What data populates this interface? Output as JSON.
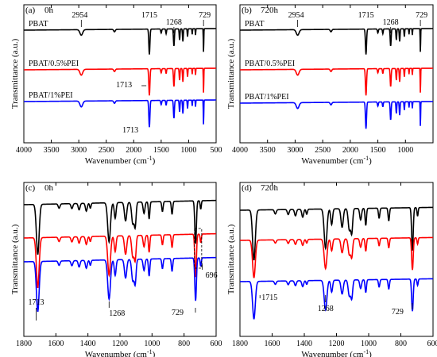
{
  "chart_data": [
    {
      "panel_label": "(a)",
      "time_label": "0h",
      "type": "line",
      "xlabel": "Wavenumber (cm⁻¹)",
      "ylabel": "Transmittance (a.u.)",
      "xlim": [
        4000,
        500
      ],
      "xticks": [
        4000,
        3500,
        3000,
        2500,
        2000,
        1500,
        1000,
        500
      ],
      "series": [
        {
          "name": "PBAT",
          "color": "#000000"
        },
        {
          "name": "PBAT/0.5%PEI",
          "color": "#ff0000"
        },
        {
          "name": "PBAT/1%PEI",
          "color": "#0000ff"
        }
      ],
      "annotations": [
        "2954",
        "1715",
        "1268",
        "729",
        "1713",
        "1713"
      ]
    },
    {
      "panel_label": "(b)",
      "time_label": "720h",
      "type": "line",
      "xlabel": "Wavenumber (cm⁻¹)",
      "ylabel": "Transmittance (a.u.)",
      "xlim": [
        4000,
        500
      ],
      "xticks": [
        4000,
        3500,
        3000,
        2500,
        2000,
        1500,
        1000
      ],
      "series": [
        {
          "name": "PBAT",
          "color": "#000000"
        },
        {
          "name": "PBAT/0.5%PEI",
          "color": "#ff0000"
        },
        {
          "name": "PBAT/1%PEI",
          "color": "#0000ff"
        }
      ],
      "annotations": [
        "2954",
        "1715",
        "1268",
        "729"
      ]
    },
    {
      "panel_label": "(c)",
      "time_label": "0h",
      "type": "line",
      "xlabel": "Wavenumber (cm⁻¹)",
      "ylabel": "Transmittance (a.u.)",
      "xlim": [
        1800,
        600
      ],
      "xticks": [
        1800,
        1600,
        1400,
        1200,
        1000,
        800,
        600
      ],
      "series": [
        {
          "color": "#000000"
        },
        {
          "color": "#ff0000"
        },
        {
          "color": "#0000ff"
        }
      ],
      "annotations": [
        "1713",
        "1268",
        "729",
        "696"
      ]
    },
    {
      "panel_label": "(d)",
      "time_label": "720h",
      "type": "line",
      "xlabel": "Wavenumber (cm⁻¹)",
      "ylabel": "Transmittance (a.u.)",
      "xlim": [
        1800,
        600
      ],
      "xticks": [
        1800,
        1600,
        1400,
        1200,
        1000,
        800,
        600
      ],
      "series": [
        {
          "color": "#000000"
        },
        {
          "color": "#ff0000"
        },
        {
          "color": "#0000ff"
        }
      ],
      "annotations": [
        "1715",
        "1268",
        "729"
      ]
    }
  ]
}
